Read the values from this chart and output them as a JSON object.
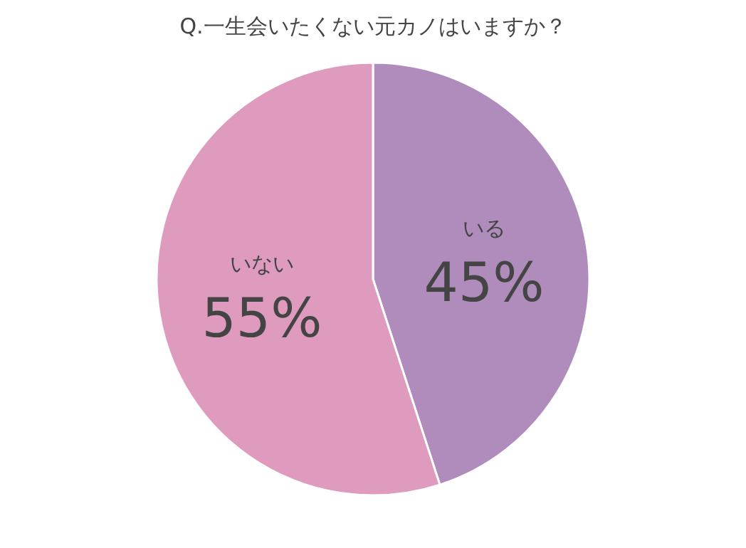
{
  "chart_data": {
    "type": "pie",
    "title": "Q.一生会いたくない元カノはいますか？",
    "categories": [
      "いる",
      "いない"
    ],
    "values": [
      45,
      55
    ],
    "colors": [
      "#b08cbd",
      "#df9bbe"
    ],
    "value_labels": [
      "45%",
      "55%"
    ]
  }
}
